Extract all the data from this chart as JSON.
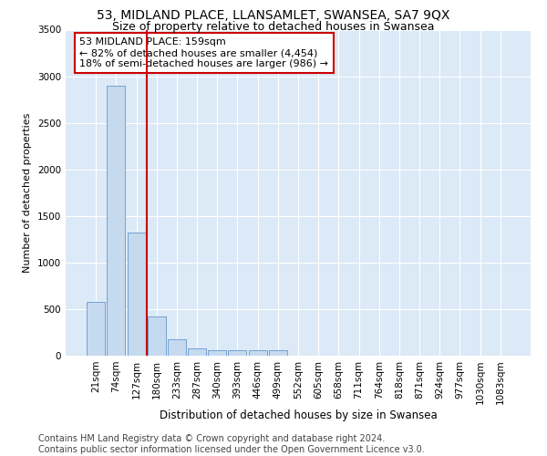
{
  "title1": "53, MIDLAND PLACE, LLANSAMLET, SWANSEA, SA7 9QX",
  "title2": "Size of property relative to detached houses in Swansea",
  "xlabel": "Distribution of detached houses by size in Swansea",
  "ylabel": "Number of detached properties",
  "categories": [
    "21sqm",
    "74sqm",
    "127sqm",
    "180sqm",
    "233sqm",
    "287sqm",
    "340sqm",
    "393sqm",
    "446sqm",
    "499sqm",
    "552sqm",
    "605sqm",
    "658sqm",
    "711sqm",
    "764sqm",
    "818sqm",
    "871sqm",
    "924sqm",
    "977sqm",
    "1030sqm",
    "1083sqm"
  ],
  "values": [
    580,
    2900,
    1320,
    420,
    175,
    80,
    60,
    60,
    60,
    60,
    0,
    0,
    0,
    0,
    0,
    0,
    0,
    0,
    0,
    0,
    0
  ],
  "bar_color": "#c5d9ef",
  "bar_edge_color": "#6699cc",
  "vline_x": 2.5,
  "vline_color": "#cc0000",
  "annotation_text": "53 MIDLAND PLACE: 159sqm\n← 82% of detached houses are smaller (4,454)\n18% of semi-detached houses are larger (986) →",
  "annotation_box_color": "#ffffff",
  "annotation_box_edge": "#cc0000",
  "plot_bg": "#dce9f7",
  "ylim": [
    0,
    3500
  ],
  "yticks": [
    0,
    500,
    1000,
    1500,
    2000,
    2500,
    3000,
    3500
  ],
  "footer1": "Contains HM Land Registry data © Crown copyright and database right 2024.",
  "footer2": "Contains public sector information licensed under the Open Government Licence v3.0.",
  "title1_fontsize": 10,
  "title2_fontsize": 9,
  "xlabel_fontsize": 8.5,
  "ylabel_fontsize": 8,
  "tick_fontsize": 7.5,
  "footer_fontsize": 7,
  "annotation_fontsize": 8
}
